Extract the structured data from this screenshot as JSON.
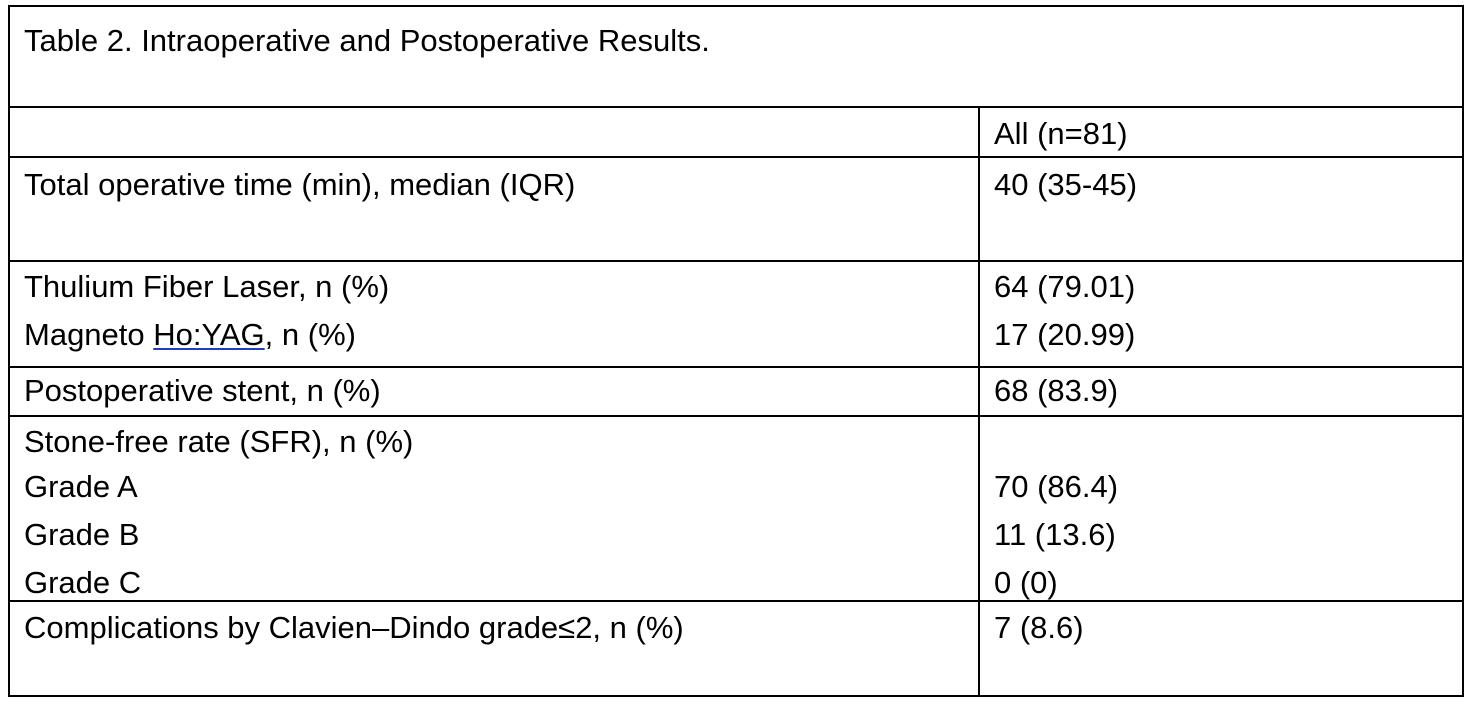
{
  "table": {
    "title": "Table 2. Intraoperative and Postoperative Results.",
    "column_header": "All (n=81)",
    "rows": {
      "operative_time": {
        "label": "Total operative time (min), median (IQR)",
        "value": "40 (35-45)"
      },
      "thulium": {
        "label": "Thulium Fiber Laser, n (%)",
        "value": "64 (79.01)"
      },
      "magneto": {
        "label_prefix": "Magneto ",
        "label_link": "Ho:YAG",
        "label_suffix": ", n (%)",
        "value": "17 (20.99)"
      },
      "stent": {
        "label": "Postoperative stent, n (%)",
        "value": "68 (83.9)"
      },
      "sfr": {
        "label": "Stone-free rate (SFR), n (%)",
        "value": ""
      },
      "grade_a": {
        "label": "Grade A",
        "value": "70 (86.4)"
      },
      "grade_b": {
        "label": "Grade B",
        "value": "11 (13.6)"
      },
      "grade_c": {
        "label": "Grade C",
        "value": "0 (0)"
      },
      "complications": {
        "label": "Complications by Clavien–Dindo grade≤2, n (%)",
        "value": "7 (8.6)"
      }
    }
  }
}
